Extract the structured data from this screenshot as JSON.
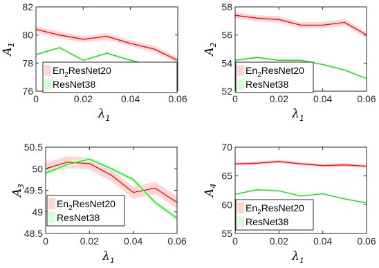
{
  "chart_data": [
    {
      "type": "line",
      "ylabel": "A",
      "ylabel_sub": "1",
      "xlabel": "λ",
      "xlabel_sub": "1",
      "xlim": [
        0,
        0.06
      ],
      "ylim": [
        76,
        82
      ],
      "xticks": [
        "0",
        "0.02",
        "0.04",
        "0.06"
      ],
      "yticks": [
        "76",
        "78",
        "80",
        "82"
      ],
      "x": [
        0,
        0.01,
        0.02,
        0.03,
        0.04,
        0.05,
        0.06
      ],
      "legend_position": "bottom-left",
      "series": [
        {
          "name": "En",
          "name_sub": "2",
          "name_rest": "ResNet20",
          "color": "#ff0000",
          "band_color": "#ffd6d6",
          "values": [
            80.4,
            80.0,
            79.7,
            79.9,
            79.4,
            79.0,
            78.2
          ],
          "band_width": 0.22
        },
        {
          "name": "ResNet38",
          "color": "#00e600",
          "band_color": "#d6ffd6",
          "values": [
            78.6,
            79.1,
            78.2,
            78.7,
            78.2,
            77.8,
            76.7
          ],
          "band_width": 0.06
        }
      ]
    },
    {
      "type": "line",
      "ylabel": "A",
      "ylabel_sub": "2",
      "xlabel": "λ",
      "xlabel_sub": "1",
      "xlim": [
        0,
        0.06
      ],
      "ylim": [
        52,
        58
      ],
      "xticks": [
        "0",
        "0.02",
        "0.04",
        "0.06"
      ],
      "yticks": [
        "52",
        "54",
        "56",
        "58"
      ],
      "x": [
        0,
        0.01,
        0.02,
        0.03,
        0.04,
        0.05,
        0.06
      ],
      "legend_position": "bottom-left",
      "series": [
        {
          "name": "En",
          "name_sub": "2",
          "name_rest": "ResNet20",
          "color": "#ff0000",
          "band_color": "#ffd6d6",
          "values": [
            57.4,
            57.2,
            57.1,
            56.7,
            56.7,
            56.9,
            56.0
          ],
          "band_width": 0.22
        },
        {
          "name": "ResNet38",
          "color": "#00e600",
          "band_color": "#d6ffd6",
          "values": [
            54.2,
            54.4,
            54.2,
            54.2,
            53.9,
            53.5,
            52.9
          ],
          "band_width": 0.06
        }
      ]
    },
    {
      "type": "line",
      "ylabel": "A",
      "ylabel_sub": "3",
      "xlabel": "λ",
      "xlabel_sub": "1",
      "xlim": [
        0,
        0.06
      ],
      "ylim": [
        48.5,
        50.5
      ],
      "xticks": [
        "0",
        "0.02",
        "0.04",
        "0.06"
      ],
      "yticks": [
        "48.5",
        "49",
        "49.5",
        "50",
        "50.5"
      ],
      "x": [
        0,
        0.01,
        0.02,
        0.03,
        0.04,
        0.05,
        0.06
      ],
      "legend_position": "bottom-left",
      "series": [
        {
          "name": "En",
          "name_sub": "2",
          "name_rest": "ResNet20",
          "color": "#ff0000",
          "band_color": "#ffd6d6",
          "values": [
            50.0,
            50.15,
            50.12,
            49.85,
            49.45,
            49.55,
            49.22
          ],
          "band_width": 0.14
        },
        {
          "name": "ResNet38",
          "color": "#00e600",
          "band_color": "#d6ffd6",
          "values": [
            49.9,
            50.1,
            50.22,
            50.0,
            49.75,
            49.22,
            48.85
          ],
          "band_width": 0.05
        }
      ]
    },
    {
      "type": "line",
      "ylabel": "A",
      "ylabel_sub": "4",
      "xlabel": "λ",
      "xlabel_sub": "1",
      "xlim": [
        0,
        0.06
      ],
      "ylim": [
        55,
        70
      ],
      "xticks": [
        "0",
        "0.02",
        "0.04",
        "0.06"
      ],
      "yticks": [
        "55",
        "60",
        "65",
        "70"
      ],
      "x": [
        0,
        0.01,
        0.02,
        0.03,
        0.04,
        0.05,
        0.06
      ],
      "legend_position": "bottom-left",
      "series": [
        {
          "name": "En",
          "name_sub": "2",
          "name_rest": "ResNet20",
          "color": "#ff0000",
          "band_color": "#ffd6d6",
          "values": [
            67.1,
            67.2,
            67.5,
            67.1,
            66.8,
            66.9,
            66.7
          ],
          "band_width": 0.3
        },
        {
          "name": "ResNet38",
          "color": "#00e600",
          "band_color": "#d6ffd6",
          "values": [
            61.8,
            62.6,
            62.4,
            61.5,
            61.9,
            61.0,
            60.3
          ],
          "band_width": 0.1
        }
      ]
    }
  ]
}
